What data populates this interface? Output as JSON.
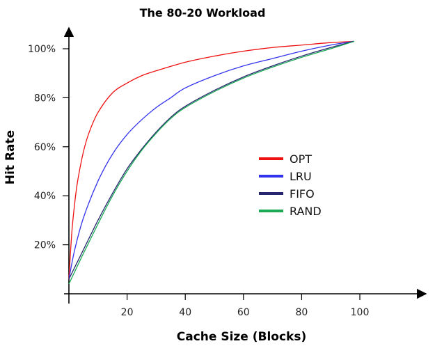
{
  "chart_data": {
    "type": "line",
    "title": "The 80-20 Workload",
    "xlabel": "Cache Size (Blocks)",
    "ylabel": "Hit Rate",
    "xlim": [
      0,
      120
    ],
    "ylim": [
      0,
      105
    ],
    "x_ticks": [
      20,
      40,
      60,
      80,
      100
    ],
    "x_tick_labels": [
      "20",
      "40",
      "60",
      "80",
      "100"
    ],
    "y_ticks": [
      20,
      40,
      60,
      80,
      100
    ],
    "y_tick_labels": [
      "20%",
      "40%",
      "60%",
      "80%",
      "100%"
    ],
    "grid": false,
    "legend_position": "center-right",
    "series": [
      {
        "name": "OPT",
        "color": "#ee1111",
        "x": [
          0,
          1,
          2,
          3,
          5,
          7,
          10,
          15,
          20,
          25,
          30,
          40,
          50,
          60,
          70,
          80,
          90,
          98
        ],
        "y": [
          6,
          25,
          37,
          46,
          58,
          66,
          74,
          82,
          86,
          89,
          91,
          94.5,
          97,
          99,
          100.5,
          101.5,
          102.5,
          103
        ]
      },
      {
        "name": "LRU",
        "color": "#3333ee",
        "x": [
          0,
          2,
          5,
          10,
          15,
          20,
          25,
          30,
          35,
          40,
          50,
          60,
          70,
          80,
          90,
          98
        ],
        "y": [
          6,
          18,
          31,
          46,
          57,
          65,
          71,
          76,
          80,
          84,
          89,
          93,
          96,
          99,
          101.5,
          103
        ]
      },
      {
        "name": "FIFO",
        "color": "#26266e",
        "x": [
          0,
          5,
          10,
          15,
          20,
          25,
          30,
          35,
          40,
          50,
          60,
          70,
          80,
          90,
          98
        ],
        "y": [
          6,
          18,
          30,
          41,
          51,
          59,
          66,
          72,
          76.5,
          83,
          88.5,
          93,
          97,
          100.5,
          103
        ]
      },
      {
        "name": "RAND",
        "color": "#1aaa55",
        "x": [
          0,
          5,
          10,
          15,
          20,
          25,
          30,
          35,
          40,
          50,
          60,
          70,
          80,
          90,
          98
        ],
        "y": [
          4,
          16.5,
          28.5,
          40,
          50,
          58.5,
          65.5,
          71.5,
          76,
          82.5,
          88,
          92.5,
          96.5,
          100,
          103
        ]
      }
    ]
  }
}
